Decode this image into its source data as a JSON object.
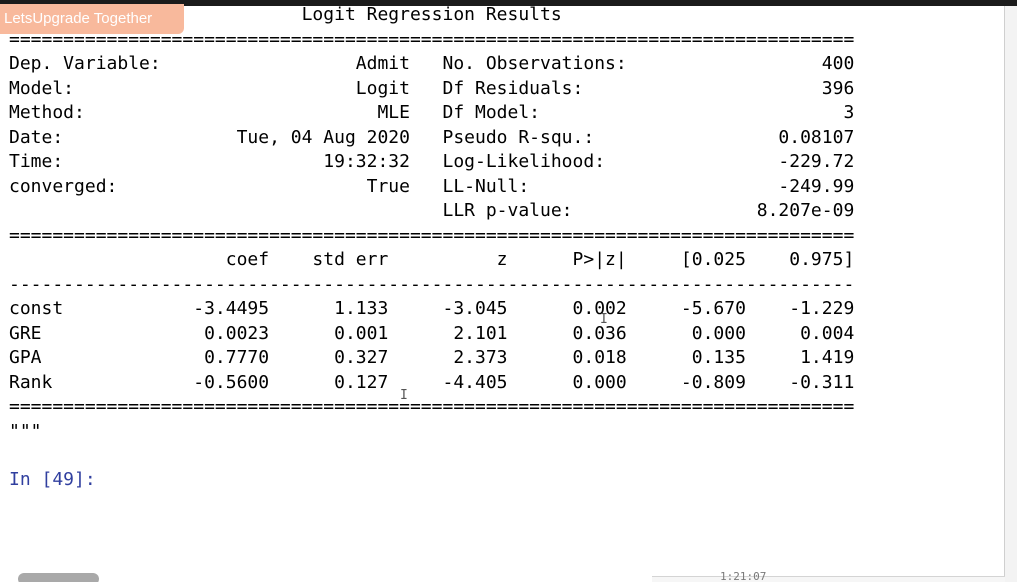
{
  "watermark": "LetsUpgrade Together",
  "output": {
    "title": "Logit Regression Results",
    "rule_char_double": "=",
    "rule_char_single": "-",
    "rule_length": 78,
    "summary_left": [
      {
        "label": "Dep. Variable:",
        "value": "Admit"
      },
      {
        "label": "Model:",
        "value": "Logit"
      },
      {
        "label": "Method:",
        "value": "MLE"
      },
      {
        "label": "Date:",
        "value": "Tue, 04 Aug 2020"
      },
      {
        "label": "Time:",
        "value": "19:32:32"
      },
      {
        "label": "converged:",
        "value": "True"
      },
      {
        "label": "",
        "value": ""
      }
    ],
    "summary_right": [
      {
        "label": "No. Observations:",
        "value": "400"
      },
      {
        "label": "Df Residuals:",
        "value": "396"
      },
      {
        "label": "Df Model:",
        "value": "3"
      },
      {
        "label": "Pseudo R-squ.:",
        "value": "0.08107"
      },
      {
        "label": "Log-Likelihood:",
        "value": "-229.72"
      },
      {
        "label": "LL-Null:",
        "value": "-249.99"
      },
      {
        "label": "LLR p-value:",
        "value": "8.207e-09"
      }
    ],
    "coef_headers": [
      "",
      "coef",
      "std err",
      "z",
      "P>|z|",
      "[0.025",
      "0.975]"
    ],
    "coef_rows": [
      [
        "const",
        "-3.4495",
        "1.133",
        "-3.045",
        "0.002",
        "-5.670",
        "-1.229"
      ],
      [
        "GRE",
        "0.0023",
        "0.001",
        "2.101",
        "0.036",
        "0.000",
        "0.004"
      ],
      [
        "GPA",
        "0.7770",
        "0.327",
        "2.373",
        "0.018",
        "0.135",
        "1.419"
      ],
      [
        "Rank",
        "-0.5600",
        "0.127",
        "-4.405",
        "0.000",
        "-0.809",
        "-0.311"
      ]
    ],
    "closing": "\"\"\""
  },
  "prompt": "In [49]:",
  "video_timestamp": "1:21:07"
}
